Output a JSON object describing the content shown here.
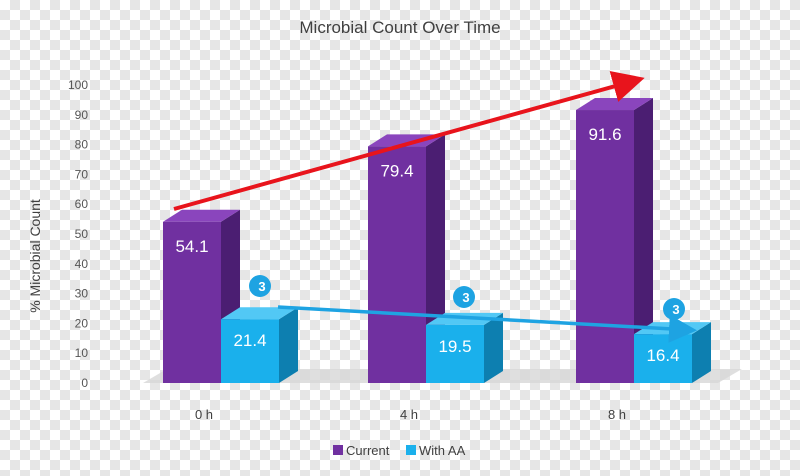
{
  "chart_data": {
    "type": "bar",
    "title": "Microbial Count Over Time",
    "xlabel": "",
    "ylabel": "% Microbial Count",
    "ylim": [
      0,
      100
    ],
    "yticks": [
      0,
      10,
      20,
      30,
      40,
      50,
      60,
      70,
      80,
      90,
      100
    ],
    "categories": [
      "0 h",
      "4 h",
      "8 h"
    ],
    "series": [
      {
        "name": "Current",
        "values": [
          54.1,
          79.4,
          91.6
        ],
        "color": "#7030a0",
        "color_dark": "#4b1e72",
        "color_light": "#8a45bd"
      },
      {
        "name": "With AA",
        "values": [
          21.4,
          19.5,
          16.4
        ],
        "color": "#1ab0ec",
        "color_dark": "#0d7fb0",
        "color_light": "#52c8f5"
      }
    ],
    "badge_text": "3",
    "grid": false,
    "legend_position": "bottom-center",
    "annotations": [
      {
        "type": "trend-arrow",
        "series": "Current",
        "color": "#e8141c"
      },
      {
        "type": "trend-arrow",
        "series": "With AA",
        "color": "#1ea3e2"
      }
    ]
  }
}
